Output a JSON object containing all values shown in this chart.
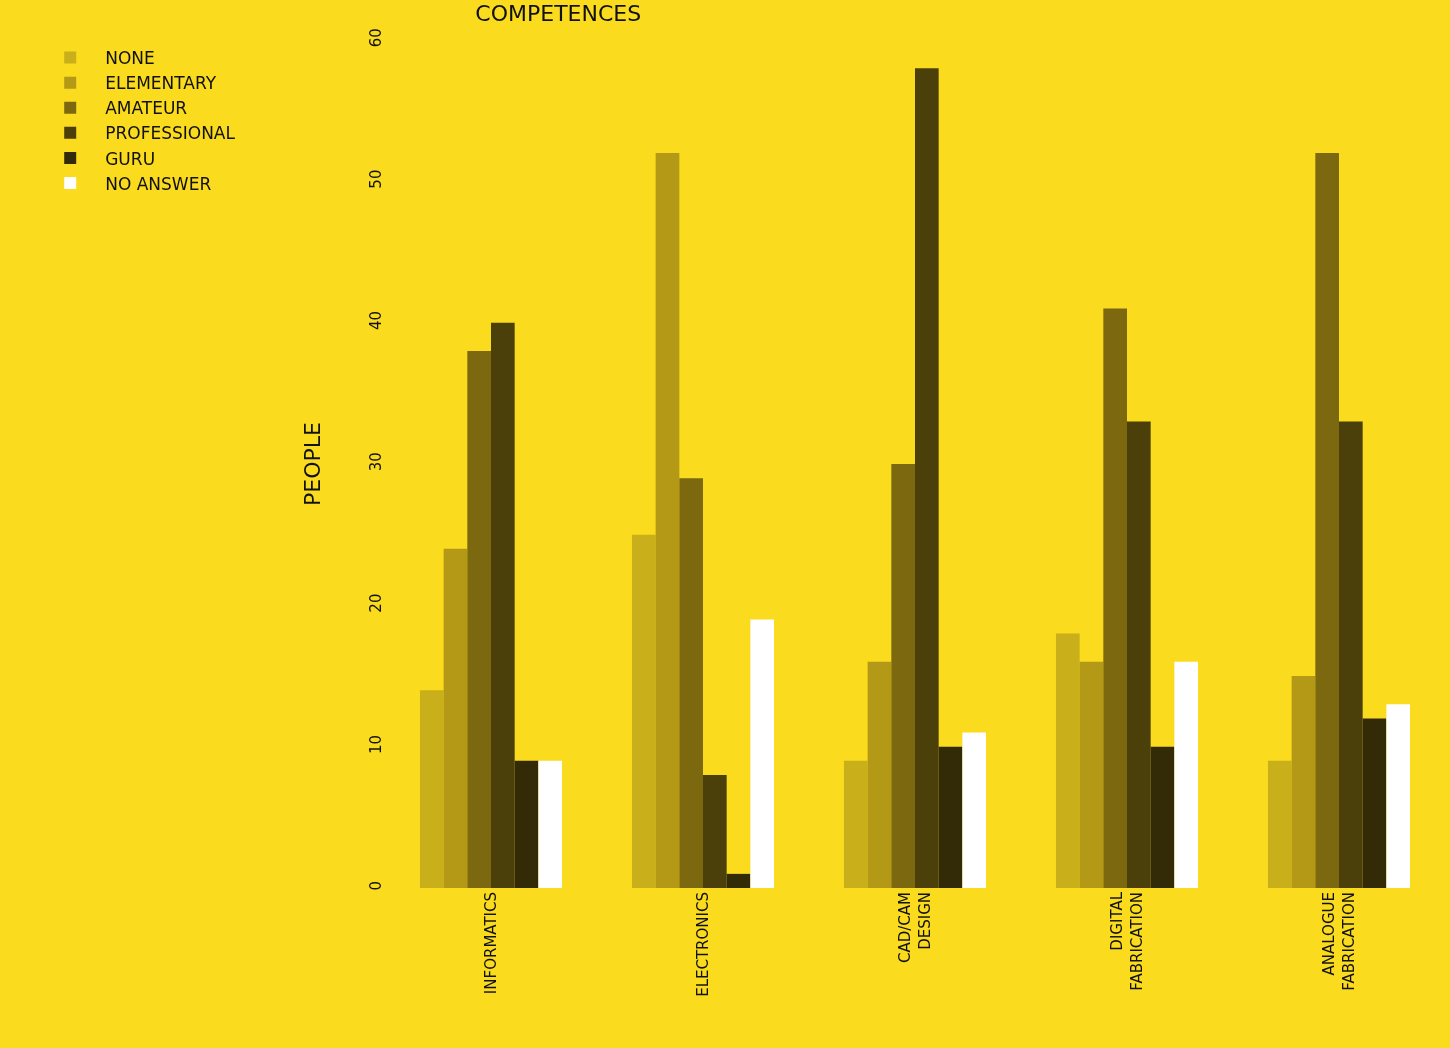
{
  "chart_data": {
    "type": "bar",
    "title": "COMPETENCES",
    "ylabel": "PEOPLE",
    "categories": [
      "INFORMATICS",
      "ELECTRONICS",
      "CAD/CAM DESIGN",
      "DIGITAL FABRICATION",
      "ANALOGUE FABRICATION"
    ],
    "series": [
      {
        "name": "NONE",
        "color": "#c9af1a",
        "values": [
          14,
          25,
          9,
          18,
          9
        ]
      },
      {
        "name": "ELEMENTARY",
        "color": "#b39916",
        "values": [
          24,
          52,
          16,
          16,
          15
        ]
      },
      {
        "name": "AMATEUR",
        "color": "#7b680f",
        "values": [
          38,
          29,
          30,
          41,
          52
        ]
      },
      {
        "name": "PROFESSIONAL",
        "color": "#4b3f0a",
        "values": [
          40,
          8,
          58,
          33,
          33
        ]
      },
      {
        "name": "GURU",
        "color": "#332a07",
        "values": [
          9,
          1,
          10,
          10,
          12
        ]
      },
      {
        "name": "NO ANSWER",
        "color": "#ffffff",
        "values": [
          9,
          19,
          11,
          16,
          13
        ]
      }
    ],
    "ylim": [
      0,
      60
    ],
    "yticks": [
      0,
      10,
      20,
      30,
      40,
      50,
      60
    ],
    "grid": false,
    "legend": "top left"
  }
}
